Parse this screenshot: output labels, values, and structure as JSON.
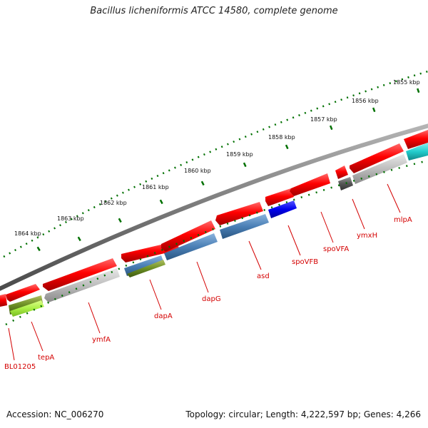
{
  "title": "Bacillus licheniformis ATCC 14580, complete genome",
  "footer": {
    "accession": "Accession: NC_006270",
    "summary": "Topology: circular; Length: 4,222,597 bp; Genes: 4,266"
  },
  "kbp_labels": [
    "1855 kbp",
    "1856 kbp",
    "1857 kbp",
    "1858 kbp",
    "1859 kbp",
    "1860 kbp",
    "1861 kbp",
    "1862 kbp",
    "1863 kbp",
    "1864 kbp"
  ],
  "gene_labels": [
    "BL01205",
    "tepA",
    "ymfA",
    "dapA",
    "dapG",
    "asd",
    "spoVFB",
    "spoVFA",
    "ymxH",
    "mlpA"
  ],
  "colors": {
    "backbone": "#7a7a7a",
    "forward_cds": "#ff0000",
    "reverse_track_gray": "#bdbdbd",
    "steel_blue": "#4a7fb5",
    "olive": "#6b8e23",
    "yellow_green": "#aaee44",
    "blue": "#0000ee",
    "cyan": "#22cccc",
    "dark_gray": "#555555",
    "tick_green": "#007000",
    "label_red": "#d40000"
  }
}
